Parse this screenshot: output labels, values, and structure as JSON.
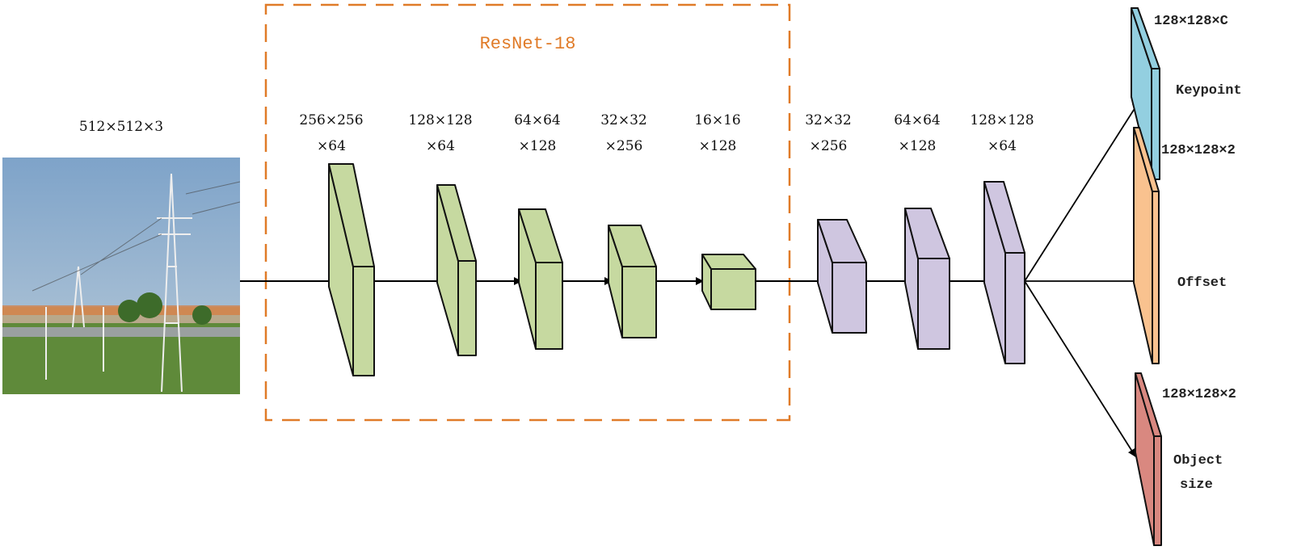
{
  "diagram": {
    "backbone_label": "ResNet-18",
    "input_label": "512×512×3",
    "colors": {
      "backbone_box": "#e07b28",
      "encoder_block": "#c6d9a0",
      "decoder_block": "#cfc6e0",
      "keypoint_head": "#93cfe0",
      "offset_head": "#f9c28f",
      "size_head": "#d98880"
    },
    "encoder": [
      {
        "line1": "256×256",
        "line2": "×64"
      },
      {
        "line1": "128×128",
        "line2": "×64"
      },
      {
        "line1": "64×64",
        "line2": "×128"
      },
      {
        "line1": "32×32",
        "line2": "×256"
      },
      {
        "line1": "16×16",
        "line2": "×128"
      }
    ],
    "decoder": [
      {
        "line1": "32×32",
        "line2": "×256"
      },
      {
        "line1": "64×64",
        "line2": "×128"
      },
      {
        "line1": "128×128",
        "line2": "×64"
      }
    ],
    "heads": [
      {
        "dims": "128×128×C",
        "name": "Keypoint"
      },
      {
        "dims": "128×128×2",
        "name": "Offset"
      },
      {
        "dims": "128×128×2",
        "name": "Object",
        "name2": "size"
      }
    ]
  }
}
